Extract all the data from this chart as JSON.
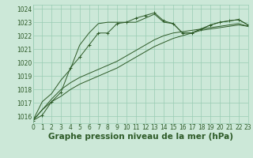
{
  "title": "Graphe pression niveau de la mer (hPa)",
  "background_color": "#cce8d8",
  "grid_color": "#99ccb3",
  "line_color": "#2d5a27",
  "xlim": [
    0,
    23
  ],
  "ylim": [
    1015.5,
    1024.3
  ],
  "yticks": [
    1016,
    1017,
    1018,
    1019,
    1020,
    1021,
    1022,
    1023,
    1024
  ],
  "xticks": [
    0,
    1,
    2,
    3,
    4,
    5,
    6,
    7,
    8,
    9,
    10,
    11,
    12,
    13,
    14,
    15,
    16,
    17,
    18,
    19,
    20,
    21,
    22,
    23
  ],
  "series_marked": [
    [
      1015.7,
      1016.1,
      1017.1,
      1017.8,
      1019.6,
      1020.4,
      1021.3,
      1022.2,
      1022.2,
      1022.9,
      1023.0,
      1023.3,
      1023.5,
      1023.7,
      1023.1,
      1022.9,
      1022.2,
      1022.2,
      1022.5,
      1022.8,
      1023.0,
      1023.1,
      1023.2,
      1022.8
    ]
  ],
  "series_plain": [
    [
      1015.7,
      1016.5,
      1017.1,
      1017.5,
      1018.0,
      1018.4,
      1018.7,
      1019.0,
      1019.3,
      1019.6,
      1020.0,
      1020.4,
      1020.8,
      1021.2,
      1021.5,
      1021.8,
      1022.0,
      1022.2,
      1022.4,
      1022.5,
      1022.6,
      1022.7,
      1022.8,
      1022.7
    ],
    [
      1015.7,
      1016.5,
      1017.3,
      1018.0,
      1018.5,
      1018.9,
      1019.2,
      1019.5,
      1019.8,
      1020.1,
      1020.5,
      1020.9,
      1021.3,
      1021.7,
      1022.0,
      1022.2,
      1022.3,
      1022.4,
      1022.5,
      1022.6,
      1022.7,
      1022.8,
      1022.9,
      1022.7
    ],
    [
      1015.7,
      1017.1,
      1017.7,
      1018.7,
      1019.5,
      1021.3,
      1022.2,
      1022.9,
      1023.0,
      1023.0,
      1023.0,
      1023.0,
      1023.3,
      1023.6,
      1023.0,
      1022.9,
      1022.2,
      1022.2,
      1022.5,
      1022.8,
      1023.0,
      1023.1,
      1023.2,
      1022.8
    ]
  ],
  "title_fontsize": 7.5,
  "tick_fontsize": 5.5,
  "line_width": 0.7,
  "marker_size": 2.5
}
